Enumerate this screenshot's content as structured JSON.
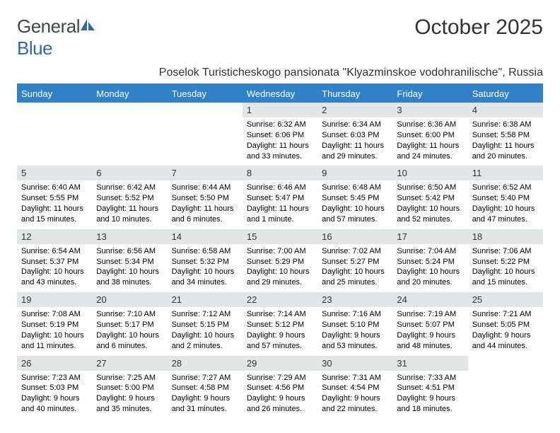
{
  "brand": {
    "text_general": "General",
    "text_blue": "Blue",
    "general_color": "#434647",
    "blue_color": "#2f6aa8"
  },
  "header": {
    "title": "October 2025",
    "subtitle": "Poselok Turisticheskogo pansionata \"Klyazminskoe vodohranilische\", Russia"
  },
  "style": {
    "header_bg": "#3081c8",
    "header_fg": "#ffffff",
    "daynum_bg": "#e4e5e7",
    "page_bg": "#ffffff",
    "text_color": "#000000",
    "title_color": "#333333"
  },
  "weekdays": [
    "Sunday",
    "Monday",
    "Tuesday",
    "Wednesday",
    "Thursday",
    "Friday",
    "Saturday"
  ],
  "weeks": [
    {
      "nums": [
        "",
        "",
        "",
        "1",
        "2",
        "3",
        "4"
      ],
      "cells": [
        {
          "lines": []
        },
        {
          "lines": []
        },
        {
          "lines": []
        },
        {
          "lines": [
            "Sunrise: 6:32 AM",
            "Sunset: 6:06 PM",
            "Daylight: 11 hours",
            "and 33 minutes."
          ]
        },
        {
          "lines": [
            "Sunrise: 6:34 AM",
            "Sunset: 6:03 PM",
            "Daylight: 11 hours",
            "and 29 minutes."
          ]
        },
        {
          "lines": [
            "Sunrise: 6:36 AM",
            "Sunset: 6:00 PM",
            "Daylight: 11 hours",
            "and 24 minutes."
          ]
        },
        {
          "lines": [
            "Sunrise: 6:38 AM",
            "Sunset: 5:58 PM",
            "Daylight: 11 hours",
            "and 20 minutes."
          ]
        }
      ]
    },
    {
      "nums": [
        "5",
        "6",
        "7",
        "8",
        "9",
        "10",
        "11"
      ],
      "cells": [
        {
          "lines": [
            "Sunrise: 6:40 AM",
            "Sunset: 5:55 PM",
            "Daylight: 11 hours",
            "and 15 minutes."
          ]
        },
        {
          "lines": [
            "Sunrise: 6:42 AM",
            "Sunset: 5:52 PM",
            "Daylight: 11 hours",
            "and 10 minutes."
          ]
        },
        {
          "lines": [
            "Sunrise: 6:44 AM",
            "Sunset: 5:50 PM",
            "Daylight: 11 hours",
            "and 6 minutes."
          ]
        },
        {
          "lines": [
            "Sunrise: 6:46 AM",
            "Sunset: 5:47 PM",
            "Daylight: 11 hours",
            "and 1 minute."
          ]
        },
        {
          "lines": [
            "Sunrise: 6:48 AM",
            "Sunset: 5:45 PM",
            "Daylight: 10 hours",
            "and 57 minutes."
          ]
        },
        {
          "lines": [
            "Sunrise: 6:50 AM",
            "Sunset: 5:42 PM",
            "Daylight: 10 hours",
            "and 52 minutes."
          ]
        },
        {
          "lines": [
            "Sunrise: 6:52 AM",
            "Sunset: 5:40 PM",
            "Daylight: 10 hours",
            "and 47 minutes."
          ]
        }
      ]
    },
    {
      "nums": [
        "12",
        "13",
        "14",
        "15",
        "16",
        "17",
        "18"
      ],
      "cells": [
        {
          "lines": [
            "Sunrise: 6:54 AM",
            "Sunset: 5:37 PM",
            "Daylight: 10 hours",
            "and 43 minutes."
          ]
        },
        {
          "lines": [
            "Sunrise: 6:56 AM",
            "Sunset: 5:34 PM",
            "Daylight: 10 hours",
            "and 38 minutes."
          ]
        },
        {
          "lines": [
            "Sunrise: 6:58 AM",
            "Sunset: 5:32 PM",
            "Daylight: 10 hours",
            "and 34 minutes."
          ]
        },
        {
          "lines": [
            "Sunrise: 7:00 AM",
            "Sunset: 5:29 PM",
            "Daylight: 10 hours",
            "and 29 minutes."
          ]
        },
        {
          "lines": [
            "Sunrise: 7:02 AM",
            "Sunset: 5:27 PM",
            "Daylight: 10 hours",
            "and 25 minutes."
          ]
        },
        {
          "lines": [
            "Sunrise: 7:04 AM",
            "Sunset: 5:24 PM",
            "Daylight: 10 hours",
            "and 20 minutes."
          ]
        },
        {
          "lines": [
            "Sunrise: 7:06 AM",
            "Sunset: 5:22 PM",
            "Daylight: 10 hours",
            "and 15 minutes."
          ]
        }
      ]
    },
    {
      "nums": [
        "19",
        "20",
        "21",
        "22",
        "23",
        "24",
        "25"
      ],
      "cells": [
        {
          "lines": [
            "Sunrise: 7:08 AM",
            "Sunset: 5:19 PM",
            "Daylight: 10 hours",
            "and 11 minutes."
          ]
        },
        {
          "lines": [
            "Sunrise: 7:10 AM",
            "Sunset: 5:17 PM",
            "Daylight: 10 hours",
            "and 6 minutes."
          ]
        },
        {
          "lines": [
            "Sunrise: 7:12 AM",
            "Sunset: 5:15 PM",
            "Daylight: 10 hours",
            "and 2 minutes."
          ]
        },
        {
          "lines": [
            "Sunrise: 7:14 AM",
            "Sunset: 5:12 PM",
            "Daylight: 9 hours",
            "and 57 minutes."
          ]
        },
        {
          "lines": [
            "Sunrise: 7:16 AM",
            "Sunset: 5:10 PM",
            "Daylight: 9 hours",
            "and 53 minutes."
          ]
        },
        {
          "lines": [
            "Sunrise: 7:19 AM",
            "Sunset: 5:07 PM",
            "Daylight: 9 hours",
            "and 48 minutes."
          ]
        },
        {
          "lines": [
            "Sunrise: 7:21 AM",
            "Sunset: 5:05 PM",
            "Daylight: 9 hours",
            "and 44 minutes."
          ]
        }
      ]
    },
    {
      "nums": [
        "26",
        "27",
        "28",
        "29",
        "30",
        "31",
        ""
      ],
      "cells": [
        {
          "lines": [
            "Sunrise: 7:23 AM",
            "Sunset: 5:03 PM",
            "Daylight: 9 hours",
            "and 40 minutes."
          ]
        },
        {
          "lines": [
            "Sunrise: 7:25 AM",
            "Sunset: 5:00 PM",
            "Daylight: 9 hours",
            "and 35 minutes."
          ]
        },
        {
          "lines": [
            "Sunrise: 7:27 AM",
            "Sunset: 4:58 PM",
            "Daylight: 9 hours",
            "and 31 minutes."
          ]
        },
        {
          "lines": [
            "Sunrise: 7:29 AM",
            "Sunset: 4:56 PM",
            "Daylight: 9 hours",
            "and 26 minutes."
          ]
        },
        {
          "lines": [
            "Sunrise: 7:31 AM",
            "Sunset: 4:54 PM",
            "Daylight: 9 hours",
            "and 22 minutes."
          ]
        },
        {
          "lines": [
            "Sunrise: 7:33 AM",
            "Sunset: 4:51 PM",
            "Daylight: 9 hours",
            "and 18 minutes."
          ]
        },
        {
          "lines": []
        }
      ]
    }
  ]
}
